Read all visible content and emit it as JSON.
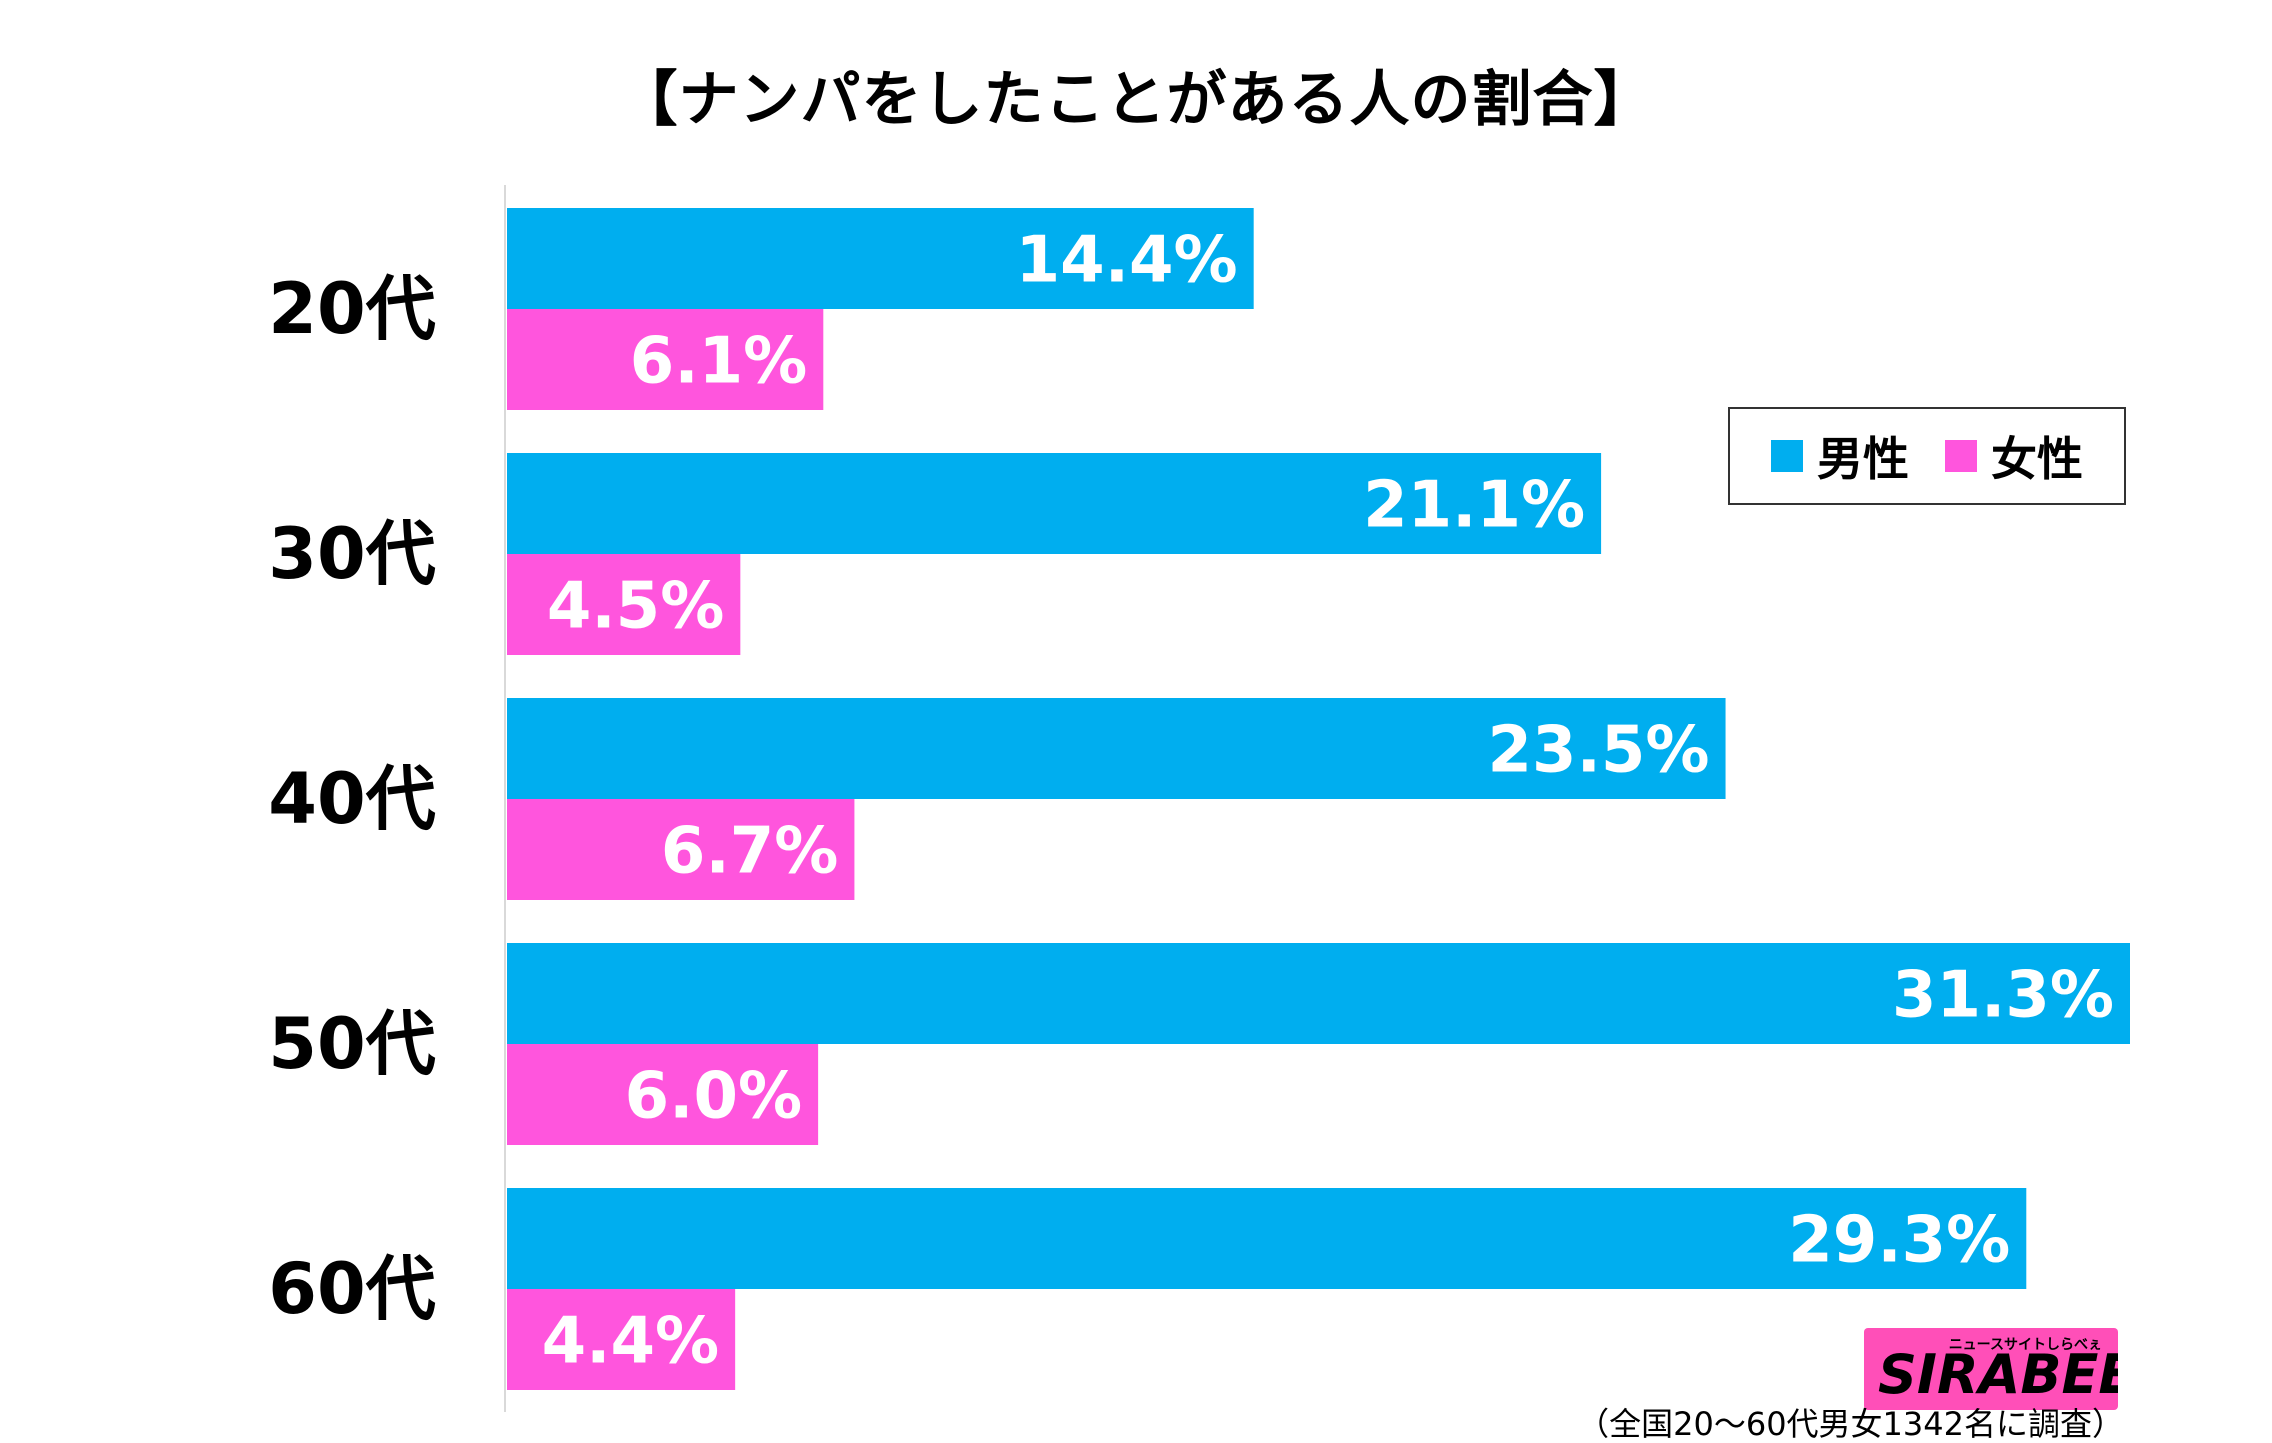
{
  "chart_data": {
    "type": "bar",
    "orientation": "horizontal",
    "title": "【ナンパをしたことがある人の割合】",
    "categories": [
      "20代",
      "30代",
      "40代",
      "50代",
      "60代"
    ],
    "series": [
      {
        "name": "男性",
        "color": "#00aeef",
        "values": [
          14.4,
          21.1,
          23.5,
          31.3,
          29.3
        ],
        "labels": [
          "14.4%",
          "21.1%",
          "23.5%",
          "31.3%",
          "29.3%"
        ]
      },
      {
        "name": "女性",
        "color": "#ff55dd",
        "values": [
          6.1,
          4.5,
          6.7,
          6.0,
          4.4
        ],
        "labels": [
          "6.1%",
          "4.5%",
          "6.7%",
          "6.0%",
          "4.4%"
        ]
      }
    ],
    "unit": "%",
    "xlim": [
      0,
      31.3
    ],
    "grid": false,
    "legend": "right"
  },
  "legend": {
    "male": "男性",
    "female": "女性",
    "male_color": "#00aeef",
    "female_color": "#ff55dd"
  },
  "logo": {
    "brand": "SIRABEE",
    "tagline": "ニュースサイトしらべぇ"
  },
  "footnote": "（全国20～60代男女1342名に調査）"
}
